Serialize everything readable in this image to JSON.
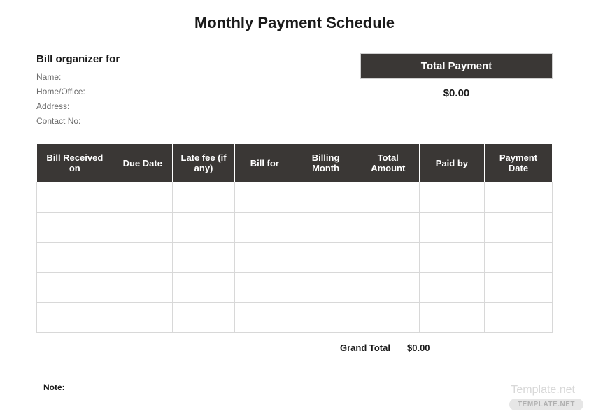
{
  "title": "Monthly Payment Schedule",
  "organizer": {
    "heading": "Bill organizer for",
    "name_label": "Name:",
    "home_office_label": "Home/Office:",
    "address_label": "Address:",
    "contact_label": "Contact No:"
  },
  "total_payment": {
    "header": "Total Payment",
    "value": "$0.00"
  },
  "table": {
    "headers": {
      "col1": "Bill Received on",
      "col2": "Due Date",
      "col3": "Late fee (if any)",
      "col4": "Bill for",
      "col5": "Billing Month",
      "col6": "Total Amount",
      "col7": "Paid by",
      "col8": "Payment Date"
    },
    "row_count": 5,
    "header_bg": "#3a3735",
    "header_fg": "#ffffff",
    "border_color": "#d8d8d8"
  },
  "grand_total": {
    "label": "Grand Total",
    "value": "$0.00"
  },
  "note_label": "Note:",
  "watermark_text": "Template.net",
  "watermark_badge": "TEMPLATE.NET"
}
